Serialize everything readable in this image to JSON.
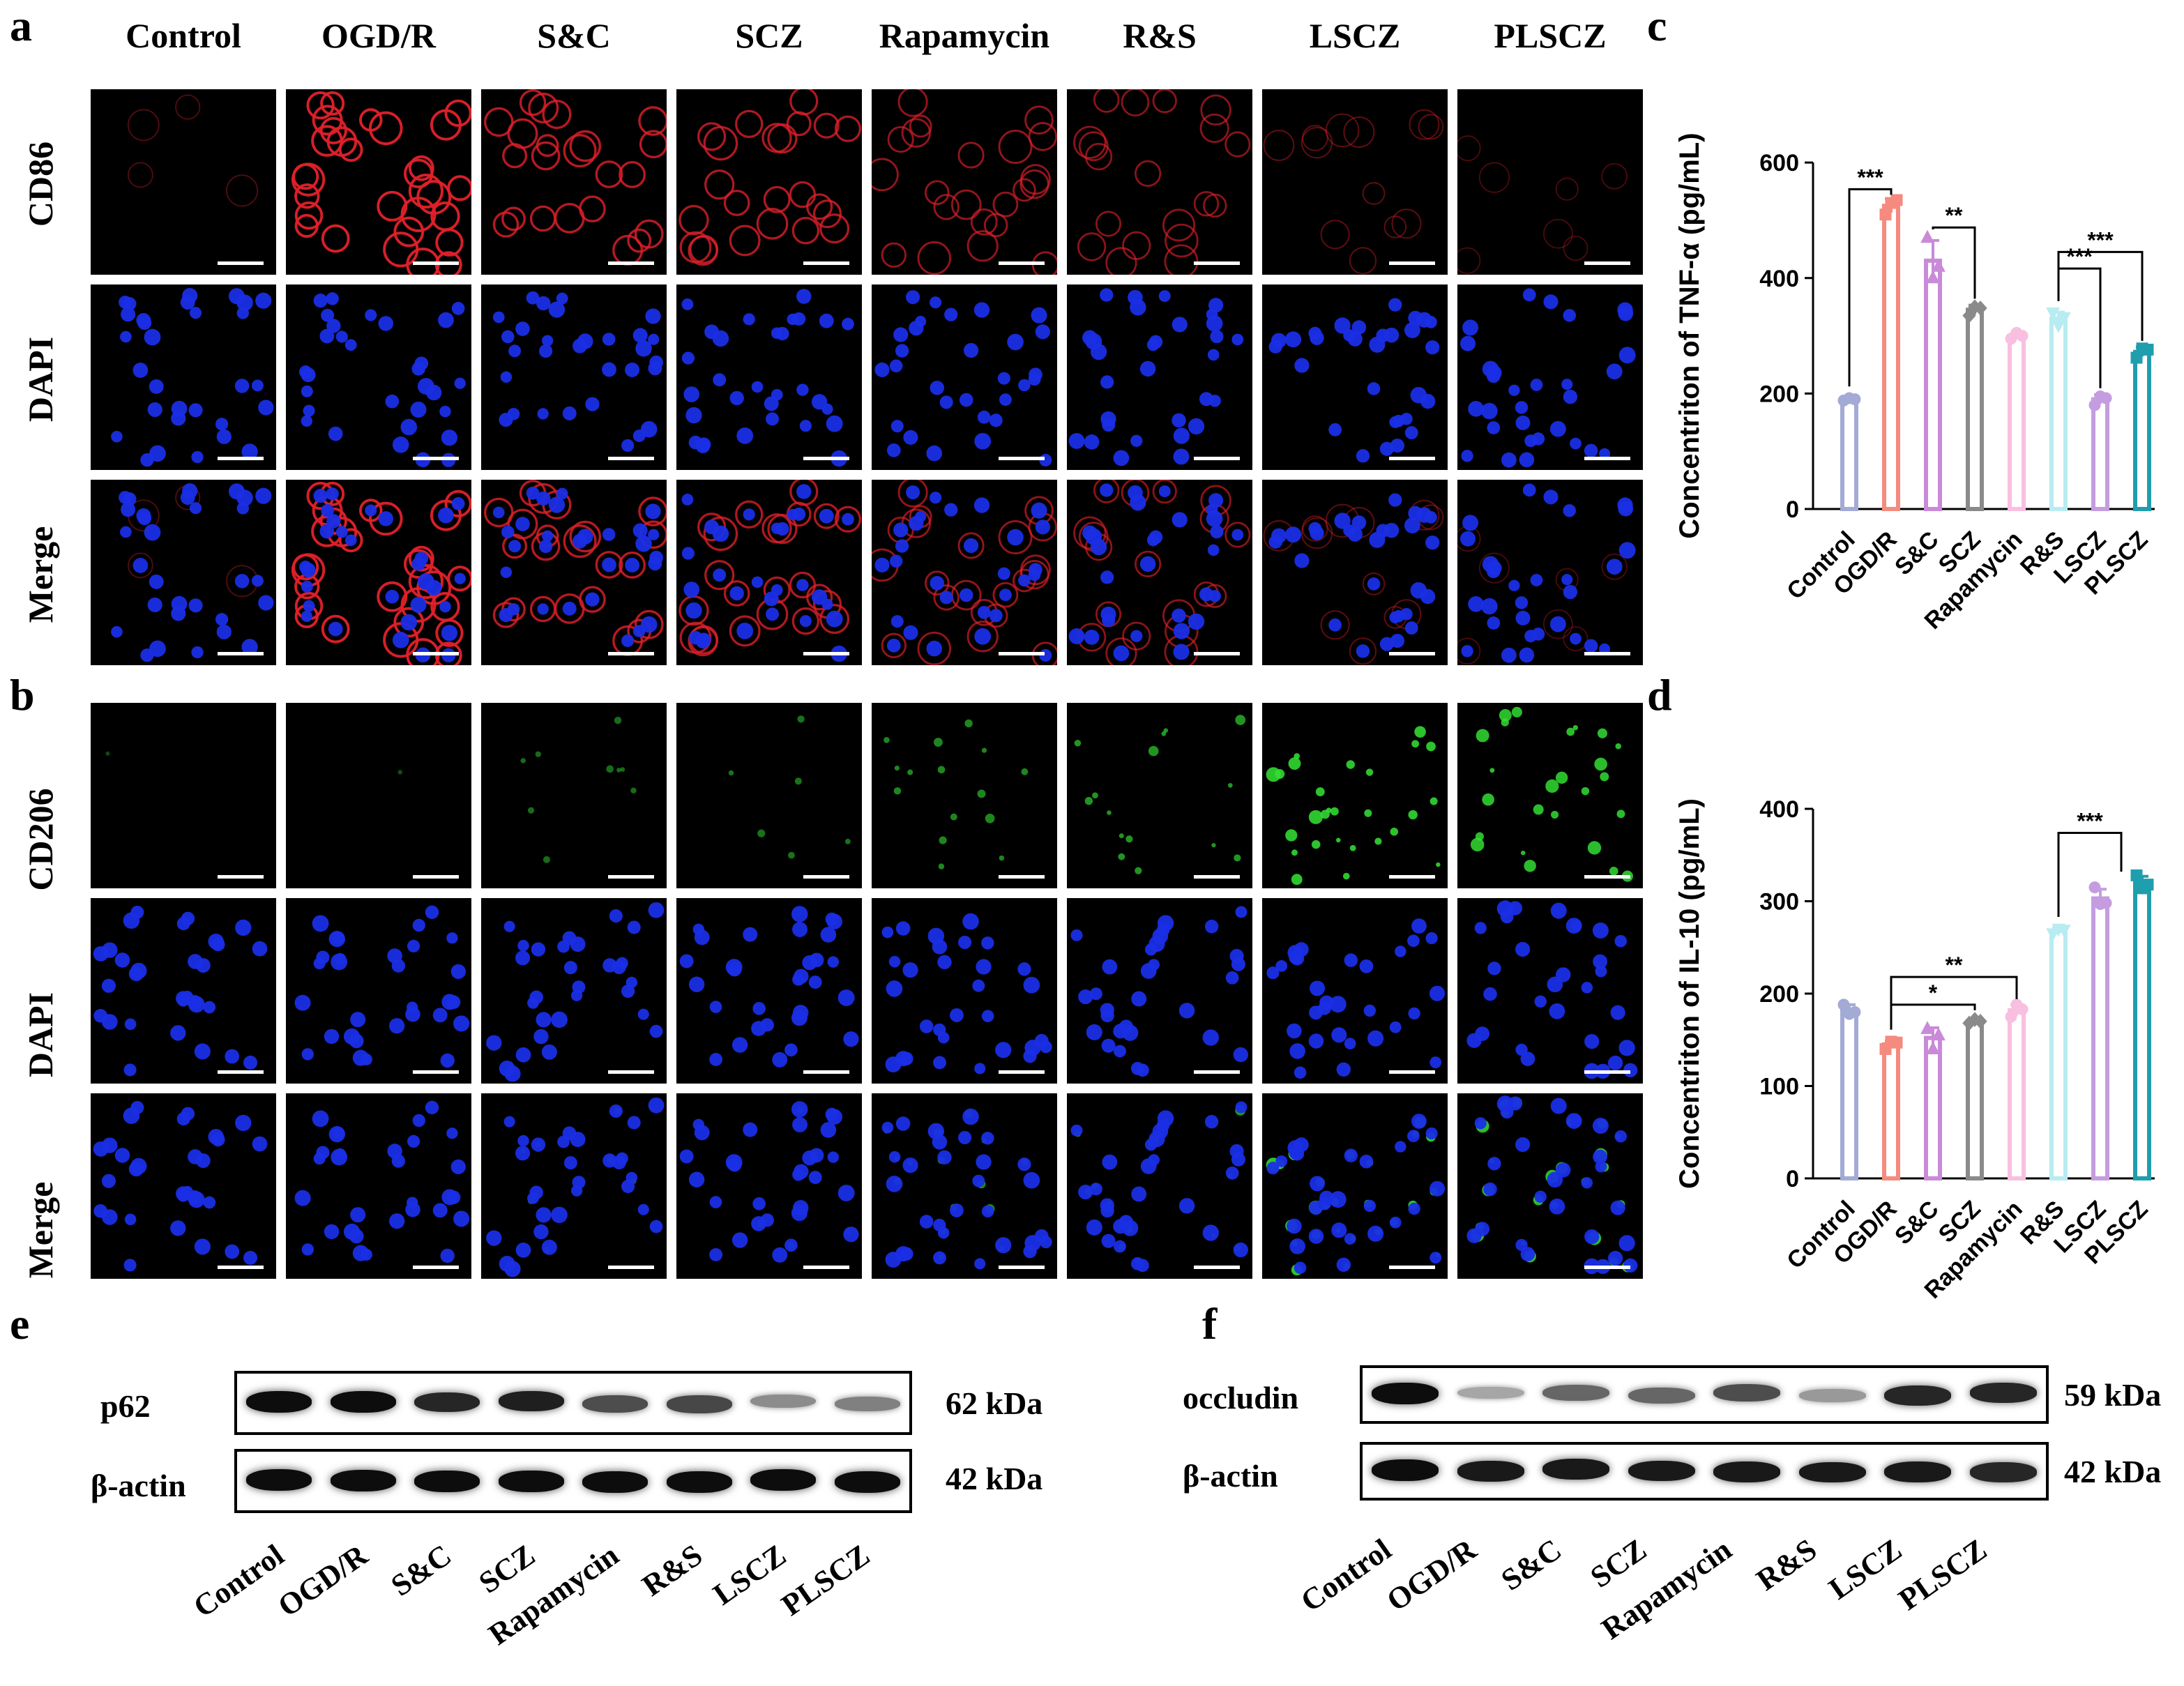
{
  "panels": {
    "a": "a",
    "b": "b",
    "c": "c",
    "d": "d",
    "e": "e",
    "f": "f"
  },
  "groups": [
    "Control",
    "OGD/R",
    "S&C",
    "SCZ",
    "Rapamycin",
    "R&S",
    "LSCZ",
    "PLSCZ"
  ],
  "panel_a": {
    "rows": [
      "CD86",
      "DAPI",
      "Merge"
    ],
    "marker_color": "#e0202a",
    "marker_intensity": [
      0.15,
      0.95,
      0.75,
      0.7,
      0.55,
      0.5,
      0.22,
      0.12
    ]
  },
  "panel_b": {
    "rows": [
      "CD206",
      "DAPI",
      "Merge"
    ],
    "marker_color": "#33e033",
    "marker_intensity": [
      0.02,
      0.08,
      0.3,
      0.35,
      0.5,
      0.6,
      0.95,
      0.9
    ]
  },
  "nucleus_color": "#1a2ee6",
  "panel_e": {
    "protein": "p62",
    "protein_kda": "62 kDa",
    "control": "β-actin",
    "control_kda": "42 kDa",
    "protein_levels": [
      0.95,
      0.95,
      0.85,
      0.88,
      0.7,
      0.72,
      0.45,
      0.5
    ],
    "control_levels": [
      0.95,
      0.95,
      0.95,
      0.95,
      0.95,
      0.95,
      0.95,
      0.95
    ]
  },
  "panel_f": {
    "protein": "occludin",
    "protein_kda": "59 kDa",
    "control": "β-actin",
    "control_kda": "42 kDa",
    "protein_levels": [
      0.95,
      0.35,
      0.6,
      0.6,
      0.7,
      0.4,
      0.85,
      0.85
    ],
    "control_levels": [
      0.95,
      0.9,
      0.9,
      0.9,
      0.9,
      0.9,
      0.9,
      0.85
    ]
  },
  "chart_data": [
    {
      "type": "bar",
      "panel": "c",
      "ylabel": "Concentriton of TNF-α (pg/mL)",
      "categories": [
        "Control",
        "OGD/R",
        "S&C",
        "SCZ",
        "Rapamycin",
        "R&S",
        "LSCZ",
        "PLSCZ"
      ],
      "values": [
        190,
        525,
        430,
        345,
        300,
        330,
        190,
        272
      ],
      "points": [
        [
          188,
          192,
          190
        ],
        [
          510,
          530,
          535
        ],
        [
          470,
          400,
          420
        ],
        [
          335,
          350,
          348
        ],
        [
          295,
          305,
          300
        ],
        [
          340,
          318,
          332
        ],
        [
          180,
          195,
          192
        ],
        [
          262,
          278,
          276
        ]
      ],
      "errors": [
        3,
        12,
        35,
        8,
        5,
        11,
        8,
        8
      ],
      "colors": [
        "#a3aad6",
        "#f58a7f",
        "#c98ad8",
        "#8a8a8a",
        "#f8bfe0",
        "#b7ecf2",
        "#c59ce0",
        "#1f9ead"
      ],
      "markers": [
        "circle",
        "square",
        "triangle",
        "diamond",
        "circle",
        "triangle-down",
        "circle",
        "square"
      ],
      "yticks": [
        0,
        200,
        400,
        600
      ],
      "ylim": [
        0,
        640
      ],
      "significance": [
        {
          "from": 0,
          "to": 1,
          "label": "***"
        },
        {
          "from": 2,
          "to": 3,
          "label": "**"
        },
        {
          "from": 5,
          "to": 6,
          "label": "***"
        },
        {
          "from": 5,
          "to": 7,
          "label": "***"
        }
      ]
    },
    {
      "type": "bar",
      "panel": "d",
      "ylabel": "Concentriton of IL-10 (pg/mL)",
      "categories": [
        "Control",
        "OGD/R",
        "S&C",
        "SCZ",
        "Rapamycin",
        "R&S",
        "LSCZ",
        "PLSCZ"
      ],
      "values": [
        182,
        145,
        152,
        170,
        182,
        268,
        303,
        320
      ],
      "points": [
        [
          188,
          178,
          180
        ],
        [
          140,
          148,
          147
        ],
        [
          162,
          140,
          155
        ],
        [
          168,
          172,
          170
        ],
        [
          175,
          188,
          183
        ],
        [
          265,
          270,
          269
        ],
        [
          315,
          297,
          298
        ],
        [
          328,
          314,
          318
        ]
      ],
      "errors": [
        6,
        4,
        11,
        3,
        6,
        3,
        10,
        7
      ],
      "colors": [
        "#a3aad6",
        "#f58a7f",
        "#c98ad8",
        "#8a8a8a",
        "#f8bfe0",
        "#b7ecf2",
        "#c59ce0",
        "#1f9ead"
      ],
      "markers": [
        "circle",
        "square",
        "triangle",
        "diamond",
        "circle",
        "triangle-down",
        "circle",
        "square"
      ],
      "yticks": [
        0,
        100,
        200,
        300,
        400
      ],
      "ylim": [
        0,
        400
      ],
      "significance": [
        {
          "from": 1,
          "to": 3,
          "label": "*"
        },
        {
          "from": 1,
          "to": 4,
          "label": "**"
        },
        {
          "from": 5,
          "to": 6.5,
          "label": "***"
        }
      ]
    }
  ]
}
